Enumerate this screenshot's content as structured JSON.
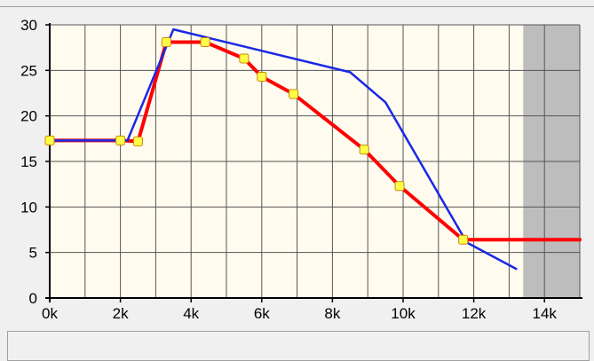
{
  "chart_data": {
    "type": "line",
    "xlim": [
      0,
      15
    ],
    "ylim": [
      0,
      30
    ],
    "x_ticks": [
      {
        "value": 0,
        "label": "0k"
      },
      {
        "value": 2,
        "label": "2k"
      },
      {
        "value": 4,
        "label": "4k"
      },
      {
        "value": 6,
        "label": "6k"
      },
      {
        "value": 8,
        "label": "8k"
      },
      {
        "value": 10,
        "label": "10k"
      },
      {
        "value": 12,
        "label": "12k"
      },
      {
        "value": 14,
        "label": "14k"
      }
    ],
    "y_ticks": [
      {
        "value": 0,
        "label": "0"
      },
      {
        "value": 5,
        "label": "5"
      },
      {
        "value": 10,
        "label": "10"
      },
      {
        "value": 15,
        "label": "15"
      },
      {
        "value": 20,
        "label": "20"
      },
      {
        "value": 25,
        "label": "25"
      },
      {
        "value": 30,
        "label": "30"
      }
    ],
    "grid": true,
    "shaded_region": {
      "from": 13.4,
      "to": 15
    },
    "series": [
      {
        "color": "#ff0000",
        "points": [
          [
            0,
            17.3
          ],
          [
            2.0,
            17.3
          ],
          [
            2.5,
            17.2
          ],
          [
            3.3,
            28.1
          ],
          [
            4.4,
            28.1
          ],
          [
            5.5,
            26.3
          ],
          [
            6.0,
            24.3
          ],
          [
            6.9,
            22.4
          ],
          [
            8.9,
            16.3
          ],
          [
            9.9,
            12.3
          ],
          [
            11.7,
            6.4
          ],
          [
            15.0,
            6.4
          ]
        ]
      },
      {
        "color": "#1a28e6",
        "points": [
          [
            0,
            17.3
          ],
          [
            2.2,
            17.3
          ],
          [
            3.5,
            29.5
          ],
          [
            8.5,
            24.8
          ],
          [
            9.5,
            21.5
          ],
          [
            11.8,
            6.1
          ],
          [
            13.2,
            3.2
          ]
        ]
      }
    ],
    "markers": [
      [
        0,
        17.3
      ],
      [
        2.0,
        17.3
      ],
      [
        2.5,
        17.2
      ],
      [
        3.3,
        28.1
      ],
      [
        4.4,
        28.1
      ],
      [
        5.5,
        26.3
      ],
      [
        6.0,
        24.3
      ],
      [
        6.9,
        22.4
      ],
      [
        8.9,
        16.3
      ],
      [
        9.9,
        12.3
      ],
      [
        11.7,
        6.4
      ]
    ]
  }
}
